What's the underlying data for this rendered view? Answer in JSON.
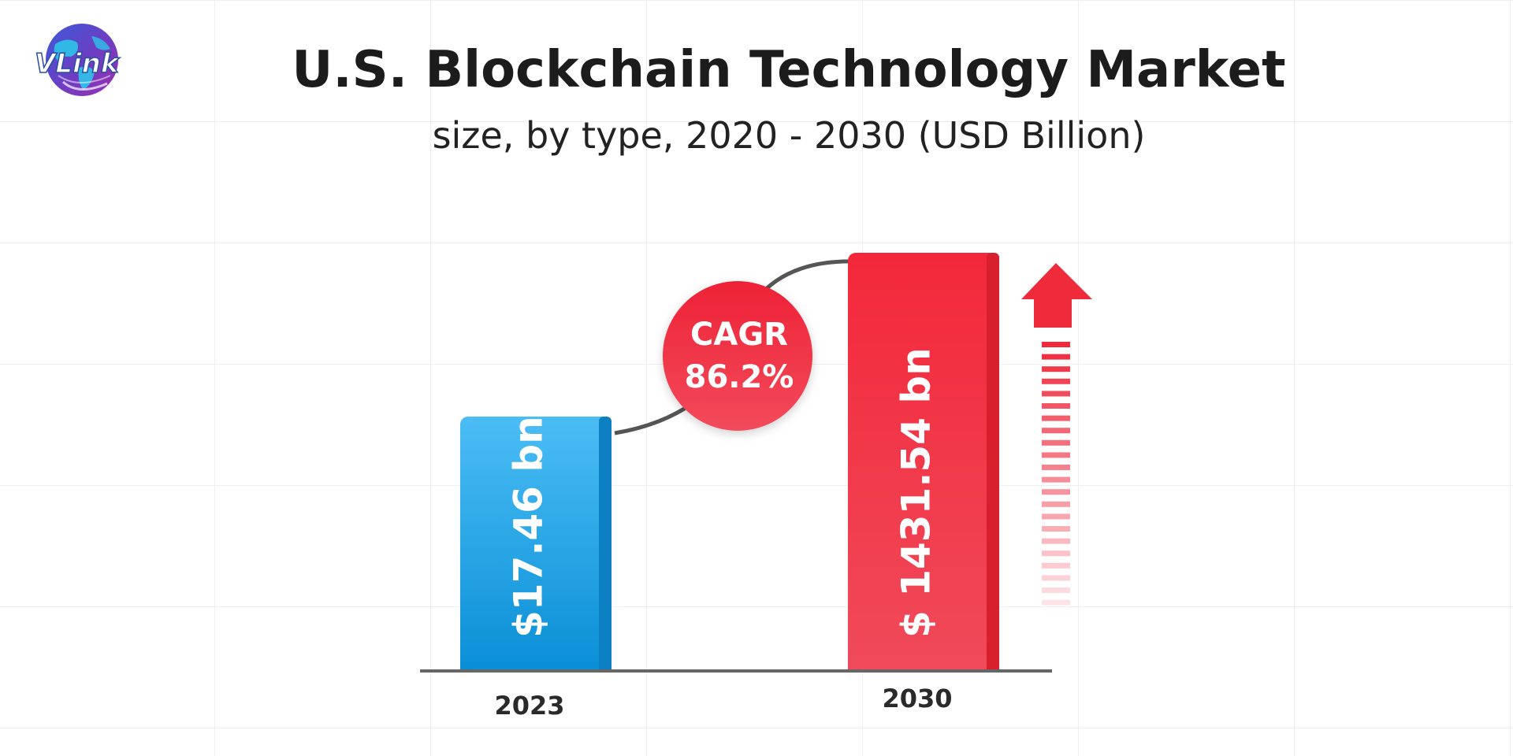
{
  "brand": {
    "logo_text": "VLink"
  },
  "header": {
    "title": "U.S. Blockchain Technology Market",
    "subtitle": "size, by type, 2020 - 2030 (USD Billion)"
  },
  "colors": {
    "bar_2023_light": "#4bbdf5",
    "bar_2023_dark": "#0a8fd6",
    "bar_2023_side": "#0b7fc1",
    "bar_2030_light": "#f2283a",
    "bar_2030_dark": "#f04a5a",
    "bar_2030_side": "#d81f2d",
    "cagr_circle": "#ef3345",
    "axis": "#666666",
    "curve": "#555555"
  },
  "chart_data": {
    "type": "bar",
    "categories": [
      "2023",
      "2030"
    ],
    "values": [
      17.46,
      1431.54
    ],
    "value_labels": [
      "$17.46 bn",
      "$ 1431.54 bn"
    ],
    "annotation": {
      "label": "CAGR",
      "value": "86.2%"
    }
  }
}
